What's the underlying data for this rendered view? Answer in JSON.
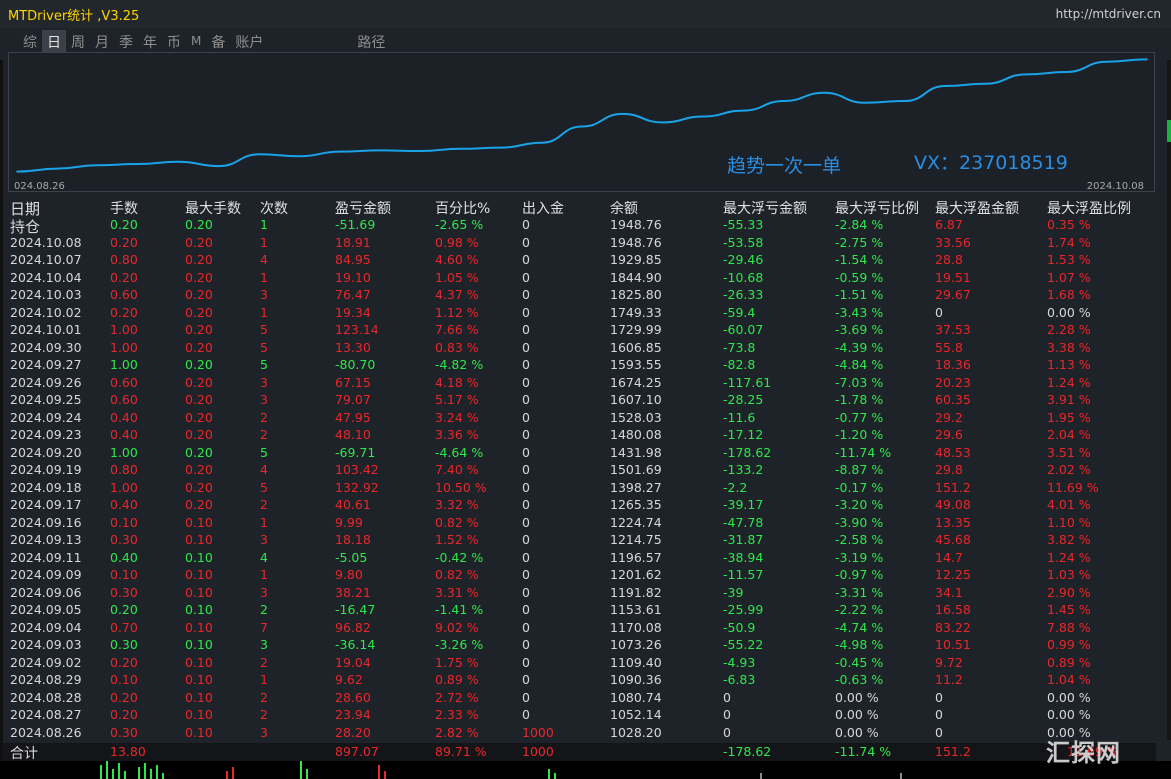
{
  "app": {
    "title": "MTDriver统计 ,V3.25",
    "url": "http://mtdriver.cn"
  },
  "tabs": [
    {
      "label": "综",
      "active": false
    },
    {
      "label": "日",
      "active": true
    },
    {
      "label": "周",
      "active": false
    },
    {
      "label": "月",
      "active": false
    },
    {
      "label": "季",
      "active": false
    },
    {
      "label": "年",
      "active": false
    },
    {
      "label": "币",
      "active": false
    },
    {
      "label": "M",
      "active": false
    },
    {
      "label": "备",
      "active": false
    },
    {
      "label": "账户",
      "active": false
    },
    {
      "label": "路径",
      "active": false
    }
  ],
  "chart_data": {
    "type": "line",
    "x_start_label": "024.08.26",
    "x_end_label": "2024.10.08",
    "x": [
      "2024.08.26",
      "2024.08.27",
      "2024.08.28",
      "2024.08.29",
      "2024.09.02",
      "2024.09.03",
      "2024.09.04",
      "2024.09.05",
      "2024.09.06",
      "2024.09.09",
      "2024.09.11",
      "2024.09.13",
      "2024.09.16",
      "2024.09.17",
      "2024.09.18",
      "2024.09.19",
      "2024.09.20",
      "2024.09.23",
      "2024.09.24",
      "2024.09.25",
      "2024.09.26",
      "2024.09.27",
      "2024.09.30",
      "2024.10.01",
      "2024.10.02",
      "2024.10.03",
      "2024.10.04",
      "2024.10.07",
      "2024.10.08"
    ],
    "values": [
      1028.2,
      1052.14,
      1080.74,
      1090.36,
      1109.4,
      1073.26,
      1170.08,
      1153.61,
      1191.82,
      1201.62,
      1196.57,
      1214.75,
      1224.74,
      1265.35,
      1398.27,
      1501.69,
      1431.98,
      1480.08,
      1528.03,
      1607.1,
      1674.25,
      1593.55,
      1606.85,
      1729.99,
      1749.33,
      1825.8,
      1844.9,
      1929.85,
      1948.76
    ],
    "line_color": "#1aa3e8",
    "ylim": [
      1000,
      1960
    ]
  },
  "overlay": {
    "trend": "趋势一次一单",
    "vx": "VX：237018519"
  },
  "colors": {
    "red": "#e8272b",
    "green": "#2ee84a",
    "neutral": "#d8d8d8",
    "title": "#ffd400",
    "overlay": "#2a8de0"
  },
  "table": {
    "headers": [
      "日期",
      "手数",
      "最大手数",
      "次数",
      "盈亏金额",
      "百分比%",
      "出入金",
      "余额",
      "最大浮亏金额",
      "最大浮亏比例",
      "最大浮盈金额",
      "最大浮盈比例"
    ],
    "rows": [
      {
        "date": "持仓",
        "lots": "0.20",
        "max_lots": "0.20",
        "count": "1",
        "pnl": "-51.69",
        "pct": "-2.65 %",
        "flow": "0",
        "balance": "1948.76",
        "max_dd": "-55.33",
        "max_dd_pct": "-2.84 %",
        "max_fp": "6.87",
        "max_fp_pct": "0.35 %"
      },
      {
        "date": "2024.10.08",
        "lots": "0.20",
        "max_lots": "0.20",
        "count": "1",
        "pnl": "18.91",
        "pct": "0.98 %",
        "flow": "0",
        "balance": "1948.76",
        "max_dd": "-53.58",
        "max_dd_pct": "-2.75 %",
        "max_fp": "33.56",
        "max_fp_pct": "1.74 %"
      },
      {
        "date": "2024.10.07",
        "lots": "0.80",
        "max_lots": "0.20",
        "count": "4",
        "pnl": "84.95",
        "pct": "4.60 %",
        "flow": "0",
        "balance": "1929.85",
        "max_dd": "-29.46",
        "max_dd_pct": "-1.54 %",
        "max_fp": "28.8",
        "max_fp_pct": "1.53 %"
      },
      {
        "date": "2024.10.04",
        "lots": "0.20",
        "max_lots": "0.20",
        "count": "1",
        "pnl": "19.10",
        "pct": "1.05 %",
        "flow": "0",
        "balance": "1844.90",
        "max_dd": "-10.68",
        "max_dd_pct": "-0.59 %",
        "max_fp": "19.51",
        "max_fp_pct": "1.07 %"
      },
      {
        "date": "2024.10.03",
        "lots": "0.60",
        "max_lots": "0.20",
        "count": "3",
        "pnl": "76.47",
        "pct": "4.37 %",
        "flow": "0",
        "balance": "1825.80",
        "max_dd": "-26.33",
        "max_dd_pct": "-1.51 %",
        "max_fp": "29.67",
        "max_fp_pct": "1.68 %"
      },
      {
        "date": "2024.10.02",
        "lots": "0.20",
        "max_lots": "0.20",
        "count": "1",
        "pnl": "19.34",
        "pct": "1.12 %",
        "flow": "0",
        "balance": "1749.33",
        "max_dd": "-59.4",
        "max_dd_pct": "-3.43 %",
        "max_fp": "0",
        "max_fp_pct": "0.00 %"
      },
      {
        "date": "2024.10.01",
        "lots": "1.00",
        "max_lots": "0.20",
        "count": "5",
        "pnl": "123.14",
        "pct": "7.66 %",
        "flow": "0",
        "balance": "1729.99",
        "max_dd": "-60.07",
        "max_dd_pct": "-3.69 %",
        "max_fp": "37.53",
        "max_fp_pct": "2.28 %"
      },
      {
        "date": "2024.09.30",
        "lots": "1.00",
        "max_lots": "0.20",
        "count": "5",
        "pnl": "13.30",
        "pct": "0.83 %",
        "flow": "0",
        "balance": "1606.85",
        "max_dd": "-73.8",
        "max_dd_pct": "-4.39 %",
        "max_fp": "55.8",
        "max_fp_pct": "3.38 %"
      },
      {
        "date": "2024.09.27",
        "lots": "1.00",
        "max_lots": "0.20",
        "count": "5",
        "pnl": "-80.70",
        "pct": "-4.82 %",
        "flow": "0",
        "balance": "1593.55",
        "max_dd": "-82.8",
        "max_dd_pct": "-4.84 %",
        "max_fp": "18.36",
        "max_fp_pct": "1.13 %"
      },
      {
        "date": "2024.09.26",
        "lots": "0.60",
        "max_lots": "0.20",
        "count": "3",
        "pnl": "67.15",
        "pct": "4.18 %",
        "flow": "0",
        "balance": "1674.25",
        "max_dd": "-117.61",
        "max_dd_pct": "-7.03 %",
        "max_fp": "20.23",
        "max_fp_pct": "1.24 %"
      },
      {
        "date": "2024.09.25",
        "lots": "0.60",
        "max_lots": "0.20",
        "count": "3",
        "pnl": "79.07",
        "pct": "5.17 %",
        "flow": "0",
        "balance": "1607.10",
        "max_dd": "-28.25",
        "max_dd_pct": "-1.78 %",
        "max_fp": "60.35",
        "max_fp_pct": "3.91 %"
      },
      {
        "date": "2024.09.24",
        "lots": "0.40",
        "max_lots": "0.20",
        "count": "2",
        "pnl": "47.95",
        "pct": "3.24 %",
        "flow": "0",
        "balance": "1528.03",
        "max_dd": "-11.6",
        "max_dd_pct": "-0.77 %",
        "max_fp": "29.2",
        "max_fp_pct": "1.95 %"
      },
      {
        "date": "2024.09.23",
        "lots": "0.40",
        "max_lots": "0.20",
        "count": "2",
        "pnl": "48.10",
        "pct": "3.36 %",
        "flow": "0",
        "balance": "1480.08",
        "max_dd": "-17.12",
        "max_dd_pct": "-1.20 %",
        "max_fp": "29.6",
        "max_fp_pct": "2.04 %"
      },
      {
        "date": "2024.09.20",
        "lots": "1.00",
        "max_lots": "0.20",
        "count": "5",
        "pnl": "-69.71",
        "pct": "-4.64 %",
        "flow": "0",
        "balance": "1431.98",
        "max_dd": "-178.62",
        "max_dd_pct": "-11.74 %",
        "max_fp": "48.53",
        "max_fp_pct": "3.51 %"
      },
      {
        "date": "2024.09.19",
        "lots": "0.80",
        "max_lots": "0.20",
        "count": "4",
        "pnl": "103.42",
        "pct": "7.40 %",
        "flow": "0",
        "balance": "1501.69",
        "max_dd": "-133.2",
        "max_dd_pct": "-8.87 %",
        "max_fp": "29.8",
        "max_fp_pct": "2.02 %"
      },
      {
        "date": "2024.09.18",
        "lots": "1.00",
        "max_lots": "0.20",
        "count": "5",
        "pnl": "132.92",
        "pct": "10.50 %",
        "flow": "0",
        "balance": "1398.27",
        "max_dd": "-2.2",
        "max_dd_pct": "-0.17 %",
        "max_fp": "151.2",
        "max_fp_pct": "11.69 %"
      },
      {
        "date": "2024.09.17",
        "lots": "0.40",
        "max_lots": "0.20",
        "count": "2",
        "pnl": "40.61",
        "pct": "3.32 %",
        "flow": "0",
        "balance": "1265.35",
        "max_dd": "-39.17",
        "max_dd_pct": "-3.20 %",
        "max_fp": "49.08",
        "max_fp_pct": "4.01 %"
      },
      {
        "date": "2024.09.16",
        "lots": "0.10",
        "max_lots": "0.10",
        "count": "1",
        "pnl": "9.99",
        "pct": "0.82 %",
        "flow": "0",
        "balance": "1224.74",
        "max_dd": "-47.78",
        "max_dd_pct": "-3.90 %",
        "max_fp": "13.35",
        "max_fp_pct": "1.10 %"
      },
      {
        "date": "2024.09.13",
        "lots": "0.30",
        "max_lots": "0.10",
        "count": "3",
        "pnl": "18.18",
        "pct": "1.52 %",
        "flow": "0",
        "balance": "1214.75",
        "max_dd": "-31.87",
        "max_dd_pct": "-2.58 %",
        "max_fp": "45.68",
        "max_fp_pct": "3.82 %"
      },
      {
        "date": "2024.09.11",
        "lots": "0.40",
        "max_lots": "0.10",
        "count": "4",
        "pnl": "-5.05",
        "pct": "-0.42 %",
        "flow": "0",
        "balance": "1196.57",
        "max_dd": "-38.94",
        "max_dd_pct": "-3.19 %",
        "max_fp": "14.7",
        "max_fp_pct": "1.24 %"
      },
      {
        "date": "2024.09.09",
        "lots": "0.10",
        "max_lots": "0.10",
        "count": "1",
        "pnl": "9.80",
        "pct": "0.82 %",
        "flow": "0",
        "balance": "1201.62",
        "max_dd": "-11.57",
        "max_dd_pct": "-0.97 %",
        "max_fp": "12.25",
        "max_fp_pct": "1.03 %"
      },
      {
        "date": "2024.09.06",
        "lots": "0.30",
        "max_lots": "0.10",
        "count": "3",
        "pnl": "38.21",
        "pct": "3.31 %",
        "flow": "0",
        "balance": "1191.82",
        "max_dd": "-39",
        "max_dd_pct": "-3.31 %",
        "max_fp": "34.1",
        "max_fp_pct": "2.90 %"
      },
      {
        "date": "2024.09.05",
        "lots": "0.20",
        "max_lots": "0.10",
        "count": "2",
        "pnl": "-16.47",
        "pct": "-1.41 %",
        "flow": "0",
        "balance": "1153.61",
        "max_dd": "-25.99",
        "max_dd_pct": "-2.22 %",
        "max_fp": "16.58",
        "max_fp_pct": "1.45 %"
      },
      {
        "date": "2024.09.04",
        "lots": "0.70",
        "max_lots": "0.10",
        "count": "7",
        "pnl": "96.82",
        "pct": "9.02 %",
        "flow": "0",
        "balance": "1170.08",
        "max_dd": "-50.9",
        "max_dd_pct": "-4.74 %",
        "max_fp": "83.22",
        "max_fp_pct": "7.88 %"
      },
      {
        "date": "2024.09.03",
        "lots": "0.30",
        "max_lots": "0.10",
        "count": "3",
        "pnl": "-36.14",
        "pct": "-3.26 %",
        "flow": "0",
        "balance": "1073.26",
        "max_dd": "-55.22",
        "max_dd_pct": "-4.98 %",
        "max_fp": "10.51",
        "max_fp_pct": "0.99 %"
      },
      {
        "date": "2024.09.02",
        "lots": "0.20",
        "max_lots": "0.10",
        "count": "2",
        "pnl": "19.04",
        "pct": "1.75 %",
        "flow": "0",
        "balance": "1109.40",
        "max_dd": "-4.93",
        "max_dd_pct": "-0.45 %",
        "max_fp": "9.72",
        "max_fp_pct": "0.89 %"
      },
      {
        "date": "2024.08.29",
        "lots": "0.10",
        "max_lots": "0.10",
        "count": "1",
        "pnl": "9.62",
        "pct": "0.89 %",
        "flow": "0",
        "balance": "1090.36",
        "max_dd": "-6.83",
        "max_dd_pct": "-0.63 %",
        "max_fp": "11.2",
        "max_fp_pct": "1.04 %"
      },
      {
        "date": "2024.08.28",
        "lots": "0.20",
        "max_lots": "0.10",
        "count": "2",
        "pnl": "28.60",
        "pct": "2.72 %",
        "flow": "0",
        "balance": "1080.74",
        "max_dd": "0",
        "max_dd_pct": "0.00 %",
        "max_fp": "0",
        "max_fp_pct": "0.00 %"
      },
      {
        "date": "2024.08.27",
        "lots": "0.20",
        "max_lots": "0.10",
        "count": "2",
        "pnl": "23.94",
        "pct": "2.33 %",
        "flow": "0",
        "balance": "1052.14",
        "max_dd": "0",
        "max_dd_pct": "0.00 %",
        "max_fp": "0",
        "max_fp_pct": "0.00 %"
      },
      {
        "date": "2024.08.26",
        "lots": "0.30",
        "max_lots": "0.10",
        "count": "3",
        "pnl": "28.20",
        "pct": "2.82 %",
        "flow": "1000",
        "balance": "1028.20",
        "max_dd": "0",
        "max_dd_pct": "0.00 %",
        "max_fp": "0",
        "max_fp_pct": "0.00 %"
      }
    ],
    "total": {
      "label": "合计",
      "lots": "13.80",
      "pnl": "897.07",
      "pct": "89.71 %",
      "flow": "1000",
      "max_dd": "-178.62",
      "max_dd_pct": "-11.74 %",
      "max_fp": "151.2",
      "max_fp_pct": "11.69 %"
    }
  },
  "watermark": "汇探网"
}
